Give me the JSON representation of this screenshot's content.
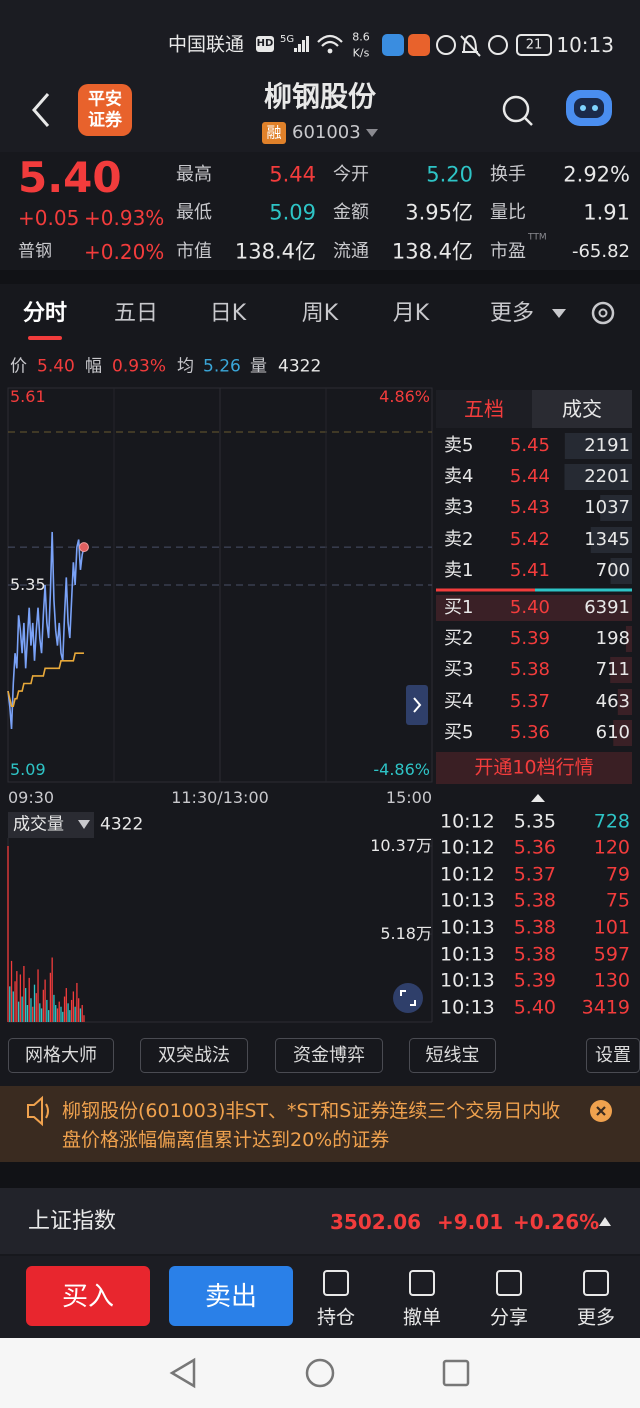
{
  "status_bar": {
    "carrier": "中国联通",
    "network": "HD",
    "signal": "5G",
    "speed": "8.6",
    "speed_unit": "K/s",
    "battery": "21",
    "time": "10:13"
  },
  "header": {
    "logo": [
      "平安",
      "证券"
    ],
    "title": "柳钢股份",
    "tag": "融",
    "code": "601003"
  },
  "quote": {
    "price": "5.40",
    "change": "+0.05",
    "change_pct": "+0.93%",
    "sector": "普钢",
    "sector_pct": "+0.20%",
    "stats": [
      {
        "label": "最高",
        "value": "5.44",
        "color": "#f23c3c"
      },
      {
        "label": "今开",
        "value": "5.20",
        "color": "#2ec4c6"
      },
      {
        "label": "换手",
        "value": "2.92%"
      },
      {
        "label": "最低",
        "value": "5.09",
        "color": "#2ec4c6"
      },
      {
        "label": "金额",
        "value": "3.95亿"
      },
      {
        "label": "量比",
        "value": "1.91"
      },
      {
        "label": "市值",
        "value": "138.4亿"
      },
      {
        "label": "流通",
        "value": "138.4亿"
      },
      {
        "label": "市盈",
        "label_sup": "TTM",
        "value": "-65.82"
      }
    ]
  },
  "tabs": [
    "分时",
    "五日",
    "日K",
    "周K",
    "月K",
    "更多"
  ],
  "info": [
    {
      "label": "价",
      "value": "5.40",
      "color": "#f23c3c"
    },
    {
      "label": "幅",
      "value": "0.93%",
      "color": "#f23c3c"
    },
    {
      "label": "均",
      "value": "5.26",
      "color": "#3aa6d8"
    },
    {
      "label": "量",
      "value": "4322"
    }
  ],
  "chart_data": [
    {
      "type": "line",
      "x": [
        0,
        1,
        2,
        3,
        4,
        5,
        6,
        7,
        8,
        9,
        10,
        11,
        12,
        13,
        14,
        15,
        16,
        17,
        18,
        19,
        20,
        21,
        22,
        23,
        24,
        25,
        26,
        27,
        28,
        29,
        30,
        31,
        32,
        33,
        34,
        35,
        36,
        37,
        38,
        39,
        40,
        41,
        42,
        43
      ],
      "xlim": [
        0,
        240
      ],
      "xticks": [
        {
          "value": 0,
          "label": "09:30"
        },
        {
          "value": 120,
          "label": "11:30/13:00"
        },
        {
          "value": 240,
          "label": "15:00"
        }
      ],
      "ylim": [
        5.09,
        5.61
      ],
      "yticks": [
        5.61,
        5.35,
        5.09
      ],
      "y2lim": [
        -4.86,
        4.86
      ],
      "y2ticks": [
        {
          "value": 4.86,
          "label": "4.86%"
        },
        {
          "value": -4.86,
          "label": "-4.86%"
        }
      ],
      "series": [
        {
          "color": "#7aa2f7",
          "values": [
            5.21,
            5.19,
            5.16,
            5.22,
            5.26,
            5.24,
            5.31,
            5.29,
            5.26,
            5.3,
            5.24,
            5.28,
            5.32,
            5.27,
            5.3,
            5.25,
            5.29,
            5.32,
            5.28,
            5.26,
            5.31,
            5.35,
            5.3,
            5.28,
            5.34,
            5.42,
            5.33,
            5.29,
            5.27,
            5.3,
            5.26,
            5.25,
            5.31,
            5.36,
            5.3,
            5.28,
            5.33,
            5.38,
            5.35,
            5.4,
            5.41,
            5.37,
            5.39,
            5.4
          ]
        },
        {
          "color": "#e8a93a",
          "values": [
            5.21,
            5.2,
            5.19,
            5.19,
            5.2,
            5.2,
            5.21,
            5.21,
            5.21,
            5.22,
            5.22,
            5.22,
            5.22,
            5.22,
            5.23,
            5.23,
            5.23,
            5.23,
            5.23,
            5.23,
            5.23,
            5.24,
            5.24,
            5.24,
            5.24,
            5.24,
            5.24,
            5.24,
            5.24,
            5.24,
            5.25,
            5.25,
            5.25,
            5.25,
            5.25,
            5.25,
            5.25,
            5.25,
            5.26,
            5.26,
            5.26,
            5.26,
            5.26,
            5.26
          ]
        }
      ]
    },
    {
      "type": "bar",
      "ylabel": "成交量",
      "ylabel_value": "4322",
      "x": [
        0,
        1,
        2,
        3,
        4,
        5,
        6,
        7,
        8,
        9,
        10,
        11,
        12,
        13,
        14,
        15,
        16,
        17,
        18,
        19,
        20,
        21,
        22,
        23,
        24,
        25,
        26,
        27,
        28,
        29,
        30,
        31,
        32,
        33,
        34,
        35,
        36,
        37,
        38,
        39,
        40,
        41,
        42,
        43
      ],
      "xlim": [
        0,
        240
      ],
      "ylim": [
        0,
        10.37
      ],
      "yticks": [
        {
          "value": 10.37,
          "label": "10.37万"
        },
        {
          "value": 5.18,
          "label": "5.18万"
        }
      ],
      "values": [
        10.37,
        2.1,
        3.6,
        1.8,
        2.4,
        3.0,
        1.2,
        2.8,
        1.5,
        3.3,
        2.0,
        1.0,
        2.6,
        1.4,
        0.9,
        2.2,
        1.7,
        3.1,
        1.1,
        0.8,
        1.9,
        2.5,
        1.3,
        0.7,
        2.9,
        3.8,
        1.6,
        1.0,
        0.8,
        1.2,
        0.9,
        0.6,
        1.5,
        2.0,
        1.1,
        0.7,
        1.3,
        1.8,
        0.9,
        2.3,
        1.4,
        0.8,
        1.0,
        0.4
      ],
      "colors": [
        "#f23c3c",
        "#2ec4c6",
        "#f23c3c",
        "#2ec4c6",
        "#f23c3c",
        "#f23c3c",
        "#2ec4c6",
        "#f23c3c",
        "#2ec4c6",
        "#f23c3c",
        "#2ec4c6",
        "#2ec4c6",
        "#f23c3c",
        "#2ec4c6",
        "#f23c3c",
        "#2ec4c6",
        "#f23c3c",
        "#f23c3c",
        "#2ec4c6",
        "#2ec4c6",
        "#f23c3c",
        "#f23c3c",
        "#2ec4c6",
        "#2ec4c6",
        "#f23c3c",
        "#f23c3c",
        "#2ec4c6",
        "#2ec4c6",
        "#f23c3c",
        "#f23c3c",
        "#2ec4c6",
        "#2ec4c6",
        "#f23c3c",
        "#f23c3c",
        "#2ec4c6",
        "#2ec4c6",
        "#f23c3c",
        "#f23c3c",
        "#2ec4c6",
        "#f23c3c",
        "#f23c3c",
        "#2ec4c6",
        "#f23c3c",
        "#f23c3c"
      ]
    }
  ],
  "order_book": {
    "tabs": [
      "五档",
      "成交"
    ],
    "asks": [
      {
        "label": "卖5",
        "price": "5.45",
        "volume": 2191
      },
      {
        "label": "卖4",
        "price": "5.44",
        "volume": 2201
      },
      {
        "label": "卖3",
        "price": "5.43",
        "volume": 1037
      },
      {
        "label": "卖2",
        "price": "5.42",
        "volume": 1345
      },
      {
        "label": "卖1",
        "price": "5.41",
        "volume": 700
      }
    ],
    "bids": [
      {
        "label": "买1",
        "price": "5.40",
        "volume": 6391
      },
      {
        "label": "买2",
        "price": "5.39",
        "volume": 198
      },
      {
        "label": "买3",
        "price": "5.38",
        "volume": 711
      },
      {
        "label": "买4",
        "price": "5.37",
        "volume": 463
      },
      {
        "label": "买5",
        "price": "5.36",
        "volume": 610
      }
    ],
    "button": "开通10档行情"
  },
  "trades": [
    {
      "time": "10:12",
      "price": "5.35",
      "volume": 728,
      "price_color": "#e8e8e8",
      "volume_color": "#2ec4c6"
    },
    {
      "time": "10:12",
      "price": "5.36",
      "volume": 120,
      "price_color": "#f23c3c",
      "volume_color": "#f23c3c"
    },
    {
      "time": "10:12",
      "price": "5.37",
      "volume": 79,
      "price_color": "#f23c3c",
      "volume_color": "#f23c3c"
    },
    {
      "time": "10:13",
      "price": "5.38",
      "volume": 75,
      "price_color": "#f23c3c",
      "volume_color": "#f23c3c"
    },
    {
      "time": "10:13",
      "price": "5.38",
      "volume": 101,
      "price_color": "#f23c3c",
      "volume_color": "#f23c3c"
    },
    {
      "time": "10:13",
      "price": "5.38",
      "volume": 597,
      "price_color": "#f23c3c",
      "volume_color": "#f23c3c"
    },
    {
      "time": "10:13",
      "price": "5.39",
      "volume": 130,
      "price_color": "#f23c3c",
      "volume_color": "#f23c3c"
    },
    {
      "time": "10:13",
      "price": "5.40",
      "volume": 3419,
      "price_color": "#f23c3c",
      "volume_color": "#f23c3c"
    }
  ],
  "tools": [
    "网格大师",
    "双突战法",
    "资金博弈",
    "短线宝",
    "设置"
  ],
  "notice": "柳钢股份(601003)非ST、*ST和S证券连续三个交易日内收盘价格涨幅偏离值累计达到20%的证券",
  "index": {
    "name": "上证指数",
    "value": "3502.06",
    "change": "+9.01",
    "change_pct": "+0.26%"
  },
  "actions": {
    "buy": "买入",
    "sell": "卖出",
    "items": [
      "持仓",
      "撤单",
      "分享",
      "更多"
    ]
  }
}
